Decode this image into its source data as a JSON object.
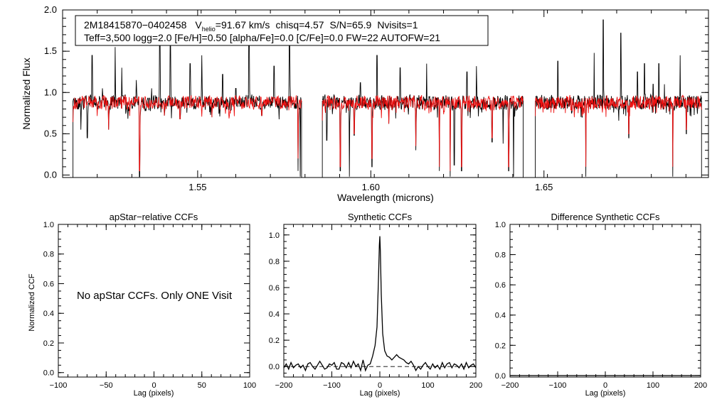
{
  "chart_data": [
    {
      "type": "line",
      "panel": "spectrum",
      "xlabel": "Wavelength (microns)",
      "ylabel": "Normalized Flux",
      "xlim": [
        1.511,
        1.6975
      ],
      "ylim": [
        -0.03,
        2.0
      ],
      "xticks": [
        1.55,
        1.6,
        1.65
      ],
      "xtick_labels": [
        "1.55",
        "1.60",
        "1.65"
      ],
      "yticks": [
        0.0,
        0.5,
        1.0,
        1.5,
        2.0
      ],
      "ytick_labels": [
        "0.0",
        "0.5",
        "1.0",
        "1.5",
        "2.0"
      ],
      "info": {
        "star_id": "2M18415870−0402458",
        "v_label": "V",
        "v_subscript": "helio",
        "v_value": "=91.67 km/s",
        "chisq": "chisq=4.57",
        "snr": "S/N=65.9",
        "nvisits": "Nvisits=1",
        "line2": "Teff=3,500 logg=2.0 [Fe/H]=0.50 [alpha/Fe]=0.0 [C/Fe]=0.0 FW=22 AUTOFW=21"
      },
      "detector_chips": [
        [
          1.514,
          1.58
        ],
        [
          1.586,
          1.644
        ],
        [
          1.6475,
          1.6955
        ]
      ],
      "series": [
        {
          "name": "observed spectrum",
          "color": "#000000",
          "continuum": 0.9,
          "noise": 0.085,
          "seed": 11,
          "features": [
            [
              1.5153,
              0.8
            ],
            [
              1.5163,
              0.55
            ],
            [
              1.5181,
              0.45
            ],
            [
              1.5195,
              1.45
            ],
            [
              1.5225,
              1.05
            ],
            [
              1.5243,
              0.55
            ],
            [
              1.5262,
              1.55
            ],
            [
              1.5281,
              1.3
            ],
            [
              1.5302,
              0.78
            ],
            [
              1.5323,
              1.15
            ],
            [
              1.5332,
              -0.02
            ],
            [
              1.5345,
              0.85
            ],
            [
              1.5367,
              1.05
            ],
            [
              1.5391,
              1.7
            ],
            [
              1.5404,
              0.72
            ],
            [
              1.5421,
              1.62
            ],
            [
              1.5449,
              0.68
            ],
            [
              1.5478,
              1.35
            ],
            [
              1.5512,
              1.45
            ],
            [
              1.5541,
              0.7
            ],
            [
              1.5572,
              1.22
            ],
            [
              1.561,
              1.05
            ],
            [
              1.5648,
              1.8
            ],
            [
              1.5685,
              0.72
            ],
            [
              1.5721,
              1.32
            ],
            [
              1.5765,
              1.62
            ],
            [
              1.579,
              0.05
            ],
            [
              1.5796,
              -0.02
            ],
            [
              1.5873,
              0.42
            ],
            [
              1.5912,
              0.05
            ],
            [
              1.5938,
              -0.02
            ],
            [
              1.5952,
              0.48
            ],
            [
              1.597,
              1.12
            ],
            [
              1.6003,
              0.1
            ],
            [
              1.6018,
              1.45
            ],
            [
              1.6052,
              0.62
            ],
            [
              1.6085,
              1.3
            ],
            [
              1.613,
              0.3
            ],
            [
              1.6161,
              1.35
            ],
            [
              1.6198,
              0.05
            ],
            [
              1.6229,
              -0.02
            ],
            [
              1.6241,
              0.12
            ],
            [
              1.6262,
              0.05
            ],
            [
              1.6278,
              1.25
            ],
            [
              1.6305,
              1.32
            ],
            [
              1.6325,
              0.8
            ],
            [
              1.635,
              0.4
            ],
            [
              1.6382,
              0.38
            ],
            [
              1.6398,
              0.05
            ],
            [
              1.6412,
              -0.02
            ],
            [
              1.642,
              0.78
            ],
            [
              1.6512,
              0.8
            ],
            [
              1.654,
              1.38
            ],
            [
              1.658,
              0.75
            ],
            [
              1.661,
              0.7
            ],
            [
              1.6621,
              -0.02
            ],
            [
              1.6645,
              1.48
            ],
            [
              1.6671,
              1.88
            ],
            [
              1.669,
              0.82
            ],
            [
              1.6722,
              1.72
            ],
            [
              1.6745,
              0.45
            ],
            [
              1.677,
              1.25
            ],
            [
              1.679,
              1.35
            ],
            [
              1.6815,
              1.1
            ],
            [
              1.6832,
              1.35
            ],
            [
              1.6848,
              1.1
            ],
            [
              1.6872,
              -0.02
            ],
            [
              1.6893,
              1.45
            ],
            [
              1.6911,
              0.5
            ]
          ]
        },
        {
          "name": "model spectrum",
          "color": "#ee1111",
          "continuum": 0.9,
          "noise": 0.08,
          "seed": 47,
          "features": [
            [
              1.5243,
              0.55
            ],
            [
              1.5332,
              0.05
            ],
            [
              1.5404,
              0.72
            ],
            [
              1.5449,
              0.68
            ],
            [
              1.5541,
              0.7
            ],
            [
              1.5685,
              0.72
            ],
            [
              1.579,
              0.2
            ],
            [
              1.5912,
              0.1
            ],
            [
              1.5952,
              0.5
            ],
            [
              1.6003,
              0.2
            ],
            [
              1.6052,
              0.62
            ],
            [
              1.613,
              0.35
            ],
            [
              1.6198,
              0.1
            ],
            [
              1.6229,
              0.05
            ],
            [
              1.6262,
              0.1
            ],
            [
              1.6325,
              0.8
            ],
            [
              1.635,
              0.45
            ],
            [
              1.6398,
              0.1
            ],
            [
              1.658,
              0.78
            ],
            [
              1.661,
              0.72
            ],
            [
              1.6621,
              0.1
            ],
            [
              1.669,
              0.85
            ],
            [
              1.6745,
              0.5
            ],
            [
              1.6872,
              0.1
            ],
            [
              1.6911,
              0.55
            ]
          ]
        }
      ]
    },
    {
      "type": "line",
      "panel": "apstar-ccf",
      "title": "apStar−relative CCFs",
      "xlabel": "Lag (pixels)",
      "ylabel": "Normalized CCF",
      "xlim": [
        -100,
        100
      ],
      "ylim": [
        -0.03,
        1.0
      ],
      "xticks": [
        -100,
        -50,
        0,
        50,
        100
      ],
      "xtick_labels": [
        "−100",
        "−50",
        "0",
        "50",
        "100"
      ],
      "yticks": [
        0.0,
        0.2,
        0.4,
        0.6,
        0.8,
        1.0
      ],
      "ytick_labels": [
        "0.0",
        "0.2",
        "0.4",
        "0.6",
        "0.8",
        "1.0"
      ],
      "note": "No apStar CCFs.  Only ONE Visit",
      "series": []
    },
    {
      "type": "line",
      "panel": "synthetic-ccf",
      "title": "Synthetic CCFs",
      "xlabel": "Lag (pixels)",
      "xlim": [
        -200,
        200
      ],
      "ylim": [
        -0.08,
        1.08
      ],
      "xticks": [
        -200,
        -100,
        0,
        100,
        200
      ],
      "xtick_labels": [
        "−200",
        "−100",
        "0",
        "100",
        "200"
      ],
      "yticks": [
        0.0,
        0.2,
        0.4,
        0.6,
        0.8,
        1.0
      ],
      "ytick_labels": [
        "0.0",
        "0.2",
        "0.4",
        "0.6",
        "0.8",
        "1.0"
      ],
      "zero_line": {
        "y": 0.0,
        "style": "dashed"
      },
      "series": [
        {
          "name": "synthetic ccf",
          "color": "#000000",
          "x": [
            -200,
            -195,
            -190,
            -185,
            -180,
            -175,
            -170,
            -165,
            -160,
            -155,
            -150,
            -145,
            -140,
            -135,
            -130,
            -125,
            -120,
            -115,
            -110,
            -105,
            -100,
            -95,
            -90,
            -85,
            -80,
            -75,
            -70,
            -65,
            -60,
            -55,
            -50,
            -45,
            -40,
            -35,
            -30,
            -25,
            -20,
            -15,
            -10,
            -6,
            -3,
            -1,
            0,
            1,
            3,
            6,
            10,
            15,
            20,
            25,
            30,
            35,
            40,
            45,
            50,
            55,
            60,
            65,
            70,
            75,
            80,
            85,
            90,
            95,
            100,
            105,
            110,
            115,
            120,
            125,
            130,
            135,
            140,
            145,
            150,
            155,
            160,
            165,
            170,
            175,
            180,
            185,
            190,
            195,
            200
          ],
          "y": [
            -0.01,
            0.02,
            -0.02,
            0.03,
            -0.01,
            0.01,
            0.02,
            -0.01,
            0.01,
            -0.03,
            0.02,
            0.03,
            0.0,
            -0.02,
            0.01,
            0.04,
            0.01,
            -0.02,
            -0.01,
            0.02,
            0.01,
            0.03,
            -0.02,
            -0.02,
            0.03,
            0.02,
            -0.01,
            0.03,
            -0.01,
            0.04,
            0.0,
            0.02,
            -0.03,
            0.05,
            -0.03,
            0.01,
            0.02,
            0.08,
            0.16,
            0.3,
            0.65,
            0.92,
            0.99,
            0.88,
            0.55,
            0.25,
            0.12,
            0.08,
            0.07,
            0.05,
            0.07,
            0.09,
            0.07,
            0.06,
            0.05,
            0.03,
            0.02,
            0.04,
            0.01,
            -0.03,
            0.0,
            -0.02,
            0.01,
            0.03,
            0.0,
            -0.02,
            0.02,
            -0.01,
            0.01,
            -0.02,
            0.03,
            -0.01,
            0.02,
            0.03,
            -0.01,
            0.02,
            0.01,
            -0.01,
            0.02,
            -0.02,
            0.03,
            -0.01,
            0.01,
            0.02,
            -0.01
          ]
        }
      ]
    },
    {
      "type": "line",
      "panel": "difference-ccf",
      "title": "Difference Synthetic CCFs",
      "xlabel": "Lag (pixels)",
      "xlim": [
        -200,
        200
      ],
      "ylim": [
        -0.01,
        1.0
      ],
      "xticks": [
        -200,
        -100,
        0,
        100,
        200
      ],
      "xtick_labels": [
        "−200",
        "−100",
        "0",
        "100",
        "200"
      ],
      "yticks": [
        0.0,
        0.2,
        0.4,
        0.6,
        0.8,
        1.0
      ],
      "ytick_labels": [
        "0.0",
        "0.2",
        "0.4",
        "0.6",
        "0.8",
        "1.0"
      ],
      "series": [
        {
          "name": "difference ccf",
          "color": "#000000",
          "x": [
            -200,
            200
          ],
          "y": [
            0.0,
            0.0
          ]
        }
      ]
    }
  ]
}
